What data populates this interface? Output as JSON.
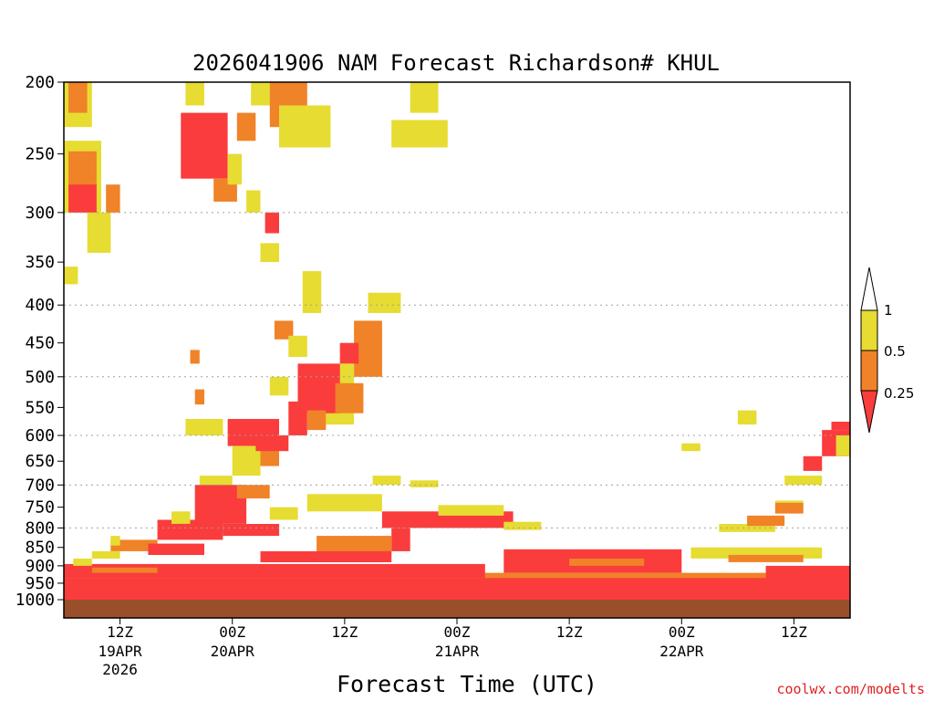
{
  "chart_data": {
    "type": "heatmap",
    "title": "2026041906 NAM Forecast Richardson# KHUL",
    "xlabel": "Forecast Time (UTC)",
    "ylabel": "",
    "y_axis_ticks": [
      "200",
      "250",
      "300",
      "350",
      "400",
      "450",
      "500",
      "550",
      "600",
      "650",
      "700",
      "750",
      "800",
      "850",
      "900",
      "950",
      "1000"
    ],
    "x_axis_ticks": [
      {
        "label": "12Z",
        "sub1": "19APR",
        "sub2": "2026"
      },
      {
        "label": "00Z",
        "sub1": "20APR",
        "sub2": ""
      },
      {
        "label": "12Z",
        "sub1": "",
        "sub2": ""
      },
      {
        "label": "00Z",
        "sub1": "21APR",
        "sub2": ""
      },
      {
        "label": "12Z",
        "sub1": "",
        "sub2": ""
      },
      {
        "label": "00Z",
        "sub1": "22APR",
        "sub2": ""
      },
      {
        "label": "12Z",
        "sub1": "",
        "sub2": ""
      }
    ],
    "legend": {
      "position": "right",
      "labels": [
        "1",
        "0.5",
        "0.25"
      ],
      "bins": [
        {
          "range": "0.5-1",
          "color": "#e6dc32"
        },
        {
          "range": "0.25-0.5",
          "color": "#f08228"
        },
        {
          "range": "<0.25",
          "color": "#fa3c3c"
        }
      ]
    },
    "colors": {
      "lt_025": "#fa3c3c",
      "b025_05": "#f08228",
      "b05_1": "#e6dc32",
      "ground": "#9a4f2a"
    },
    "x_hours_range": [
      0,
      84
    ],
    "ground_level_hpa": 1000,
    "regions": [
      {
        "cat": "b05_1",
        "h": [
          0,
          3
        ],
        "p": [
          200,
          230
        ]
      },
      {
        "cat": "b025_05",
        "h": [
          0.5,
          2.5
        ],
        "p": [
          200,
          220
        ]
      },
      {
        "cat": "b05_1",
        "h": [
          0,
          4
        ],
        "p": [
          240,
          300
        ]
      },
      {
        "cat": "b025_05",
        "h": [
          0.5,
          3.5
        ],
        "p": [
          248,
          280
        ]
      },
      {
        "cat": "lt_025",
        "h": [
          0.5,
          3.5
        ],
        "p": [
          275,
          300
        ]
      },
      {
        "cat": "b05_1",
        "h": [
          2.5,
          5
        ],
        "p": [
          300,
          340
        ]
      },
      {
        "cat": "b025_05",
        "h": [
          4.5,
          6
        ],
        "p": [
          275,
          300
        ]
      },
      {
        "cat": "b05_1",
        "h": [
          0,
          1.5
        ],
        "p": [
          355,
          375
        ]
      },
      {
        "cat": "b05_1",
        "h": [
          13,
          15
        ],
        "p": [
          200,
          215
        ]
      },
      {
        "cat": "b05_1",
        "h": [
          20,
          23
        ],
        "p": [
          200,
          215
        ]
      },
      {
        "cat": "b025_05",
        "h": [
          18.5,
          20.5
        ],
        "p": [
          220,
          240
        ]
      },
      {
        "cat": "lt_025",
        "h": [
          12.5,
          17.5
        ],
        "p": [
          220,
          270
        ]
      },
      {
        "cat": "b025_05",
        "h": [
          16,
          18.5
        ],
        "p": [
          270,
          290
        ]
      },
      {
        "cat": "b05_1",
        "h": [
          17.5,
          19
        ],
        "p": [
          250,
          275
        ]
      },
      {
        "cat": "b05_1",
        "h": [
          19.5,
          21
        ],
        "p": [
          280,
          300
        ]
      },
      {
        "cat": "lt_025",
        "h": [
          21.5,
          23
        ],
        "p": [
          300,
          320
        ]
      },
      {
        "cat": "b05_1",
        "h": [
          21,
          23
        ],
        "p": [
          330,
          350
        ]
      },
      {
        "cat": "b025_05",
        "h": [
          22,
          26
        ],
        "p": [
          200,
          230
        ]
      },
      {
        "cat": "b05_1",
        "h": [
          23,
          28.5
        ],
        "p": [
          215,
          245
        ]
      },
      {
        "cat": "b05_1",
        "h": [
          37,
          40
        ],
        "p": [
          200,
          220
        ]
      },
      {
        "cat": "b05_1",
        "h": [
          35,
          41
        ],
        "p": [
          225,
          245
        ]
      },
      {
        "cat": "b05_1",
        "h": [
          25.5,
          27.5
        ],
        "p": [
          360,
          410
        ]
      },
      {
        "cat": "b05_1",
        "h": [
          32.5,
          36
        ],
        "p": [
          385,
          410
        ]
      },
      {
        "cat": "b025_05",
        "h": [
          22.5,
          24.5
        ],
        "p": [
          420,
          445
        ]
      },
      {
        "cat": "b05_1",
        "h": [
          24,
          26
        ],
        "p": [
          440,
          470
        ]
      },
      {
        "cat": "b025_05",
        "h": [
          31,
          34
        ],
        "p": [
          420,
          500
        ]
      },
      {
        "cat": "lt_025",
        "h": [
          29.5,
          31.5
        ],
        "p": [
          450,
          480
        ]
      },
      {
        "cat": "b05_1",
        "h": [
          28,
          31
        ],
        "p": [
          480,
          580
        ]
      },
      {
        "cat": "lt_025",
        "h": [
          25,
          29.5
        ],
        "p": [
          480,
          560
        ]
      },
      {
        "cat": "b025_05",
        "h": [
          29,
          32
        ],
        "p": [
          510,
          560
        ]
      },
      {
        "cat": "lt_025",
        "h": [
          24,
          26
        ],
        "p": [
          540,
          600
        ]
      },
      {
        "cat": "b025_05",
        "h": [
          26,
          28
        ],
        "p": [
          555,
          590
        ]
      },
      {
        "cat": "b05_1",
        "h": [
          22,
          24
        ],
        "p": [
          500,
          530
        ]
      },
      {
        "cat": "b025_05",
        "h": [
          13.5,
          14.5
        ],
        "p": [
          460,
          480
        ]
      },
      {
        "cat": "b025_05",
        "h": [
          14,
          15
        ],
        "p": [
          520,
          545
        ]
      },
      {
        "cat": "b05_1",
        "h": [
          13,
          17
        ],
        "p": [
          570,
          600
        ]
      },
      {
        "cat": "lt_025",
        "h": [
          17.5,
          23
        ],
        "p": [
          570,
          620
        ]
      },
      {
        "cat": "b025_05",
        "h": [
          20,
          23
        ],
        "p": [
          620,
          660
        ]
      },
      {
        "cat": "b05_1",
        "h": [
          18,
          21
        ],
        "p": [
          620,
          680
        ]
      },
      {
        "cat": "lt_025",
        "h": [
          20.5,
          24
        ],
        "p": [
          600,
          630
        ]
      },
      {
        "cat": "b05_1",
        "h": [
          14.5,
          18
        ],
        "p": [
          680,
          710
        ]
      },
      {
        "cat": "lt_025",
        "h": [
          14,
          19.5
        ],
        "p": [
          700,
          790
        ]
      },
      {
        "cat": "b025_05",
        "h": [
          18.5,
          22
        ],
        "p": [
          700,
          730
        ]
      },
      {
        "cat": "lt_025",
        "h": [
          10,
          17
        ],
        "p": [
          780,
          830
        ]
      },
      {
        "cat": "b05_1",
        "h": [
          11.5,
          13.5
        ],
        "p": [
          760,
          790
        ]
      },
      {
        "cat": "lt_025",
        "h": [
          17,
          23
        ],
        "p": [
          790,
          820
        ]
      },
      {
        "cat": "b05_1",
        "h": [
          22,
          25
        ],
        "p": [
          750,
          780
        ]
      },
      {
        "cat": "b025_05",
        "h": [
          5,
          10
        ],
        "p": [
          830,
          860
        ]
      },
      {
        "cat": "lt_025",
        "h": [
          9,
          15
        ],
        "p": [
          840,
          870
        ]
      },
      {
        "cat": "b05_1",
        "h": [
          5,
          6
        ],
        "p": [
          820,
          845
        ]
      },
      {
        "cat": "b05_1",
        "h": [
          26,
          34
        ],
        "p": [
          720,
          760
        ]
      },
      {
        "cat": "lt_025",
        "h": [
          34,
          48
        ],
        "p": [
          760,
          800
        ]
      },
      {
        "cat": "b05_1",
        "h": [
          40,
          47
        ],
        "p": [
          745,
          770
        ]
      },
      {
        "cat": "b05_1",
        "h": [
          47,
          51
        ],
        "p": [
          785,
          805
        ]
      },
      {
        "cat": "lt_025",
        "h": [
          35,
          37
        ],
        "p": [
          800,
          860
        ]
      },
      {
        "cat": "b025_05",
        "h": [
          27,
          35
        ],
        "p": [
          820,
          870
        ]
      },
      {
        "cat": "lt_025",
        "h": [
          21,
          35
        ],
        "p": [
          860,
          890
        ]
      },
      {
        "cat": "b05_1",
        "h": [
          33,
          36
        ],
        "p": [
          680,
          700
        ]
      },
      {
        "cat": "b05_1",
        "h": [
          37,
          40
        ],
        "p": [
          690,
          705
        ]
      },
      {
        "cat": "lt_025",
        "h": [
          0,
          84
        ],
        "p": [
          932,
          1000
        ]
      },
      {
        "cat": "b025_05",
        "h": [
          0,
          84
        ],
        "p": [
          920,
          935
        ]
      },
      {
        "cat": "lt_025",
        "h": [
          0,
          45
        ],
        "p": [
          895,
          935
        ]
      },
      {
        "cat": "b025_05",
        "h": [
          3,
          10
        ],
        "p": [
          905,
          920
        ]
      },
      {
        "cat": "b05_1",
        "h": [
          1,
          3
        ],
        "p": [
          880,
          900
        ]
      },
      {
        "cat": "b05_1",
        "h": [
          3,
          6
        ],
        "p": [
          860,
          880
        ]
      },
      {
        "cat": "lt_025",
        "h": [
          47,
          66
        ],
        "p": [
          855,
          920
        ]
      },
      {
        "cat": "b025_05",
        "h": [
          54,
          62
        ],
        "p": [
          880,
          900
        ]
      },
      {
        "cat": "b05_1",
        "h": [
          67,
          81
        ],
        "p": [
          850,
          880
        ]
      },
      {
        "cat": "b025_05",
        "h": [
          71,
          79
        ],
        "p": [
          870,
          890
        ]
      },
      {
        "cat": "b05_1",
        "h": [
          70,
          76
        ],
        "p": [
          790,
          810
        ]
      },
      {
        "cat": "b025_05",
        "h": [
          73,
          77
        ],
        "p": [
          770,
          795
        ]
      },
      {
        "cat": "b05_1",
        "h": [
          76,
          79
        ],
        "p": [
          735,
          760
        ]
      },
      {
        "cat": "b025_05",
        "h": [
          76,
          79
        ],
        "p": [
          740,
          765
        ]
      },
      {
        "cat": "b05_1",
        "h": [
          77,
          81
        ],
        "p": [
          680,
          700
        ]
      },
      {
        "cat": "lt_025",
        "h": [
          79,
          81
        ],
        "p": [
          640,
          670
        ]
      },
      {
        "cat": "lt_025",
        "h": [
          81,
          84
        ],
        "p": [
          590,
          640
        ]
      },
      {
        "cat": "b05_1",
        "h": [
          82.5,
          84
        ],
        "p": [
          600,
          640
        ]
      },
      {
        "cat": "lt_025",
        "h": [
          82,
          84
        ],
        "p": [
          575,
          590
        ]
      },
      {
        "cat": "lt_025",
        "h": [
          75,
          84
        ],
        "p": [
          900,
          960
        ]
      },
      {
        "cat": "b05_1",
        "h": [
          72,
          74
        ],
        "p": [
          555,
          580
        ]
      },
      {
        "cat": "b05_1",
        "h": [
          66,
          68
        ],
        "p": [
          615,
          630
        ]
      }
    ]
  },
  "credit": "coolwx.com/modelts"
}
